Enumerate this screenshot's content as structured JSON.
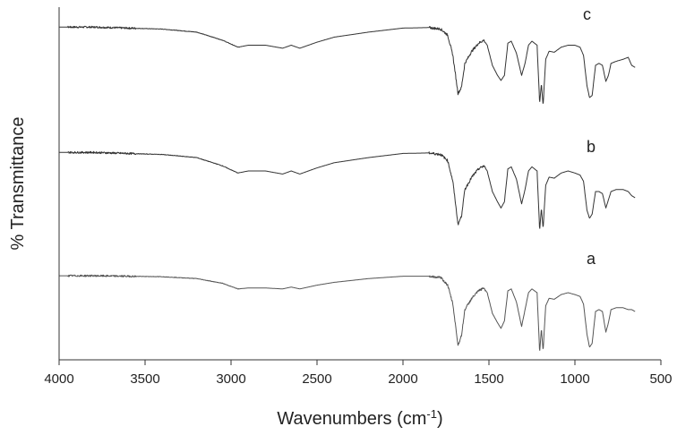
{
  "chart_data": {
    "type": "line",
    "title": "",
    "xlabel": "Wavenumbers (cm",
    "xlabel_sup": "-1",
    "xlabel_close": ")",
    "ylabel": "% Transmittance",
    "xlim": [
      4000,
      500
    ],
    "x_reversed": true,
    "x_ticks": [
      "4000",
      "3500",
      "3000",
      "2500",
      "2000",
      "1500",
      "1000",
      "500"
    ],
    "grid": false,
    "legend": "none",
    "y_axis_values_hidden": true,
    "series": [
      {
        "name": "c",
        "color": "#333333",
        "points": [
          [
            4000,
            98
          ],
          [
            3800,
            98
          ],
          [
            3600,
            97
          ],
          [
            3400,
            96
          ],
          [
            3200,
            93
          ],
          [
            3050,
            85
          ],
          [
            2960,
            78
          ],
          [
            2900,
            80
          ],
          [
            2800,
            80
          ],
          [
            2700,
            77
          ],
          [
            2650,
            80
          ],
          [
            2600,
            77
          ],
          [
            2550,
            80
          ],
          [
            2500,
            83
          ],
          [
            2400,
            88
          ],
          [
            2200,
            93
          ],
          [
            2000,
            97
          ],
          [
            1850,
            97.5
          ],
          [
            1780,
            96
          ],
          [
            1740,
            90
          ],
          [
            1710,
            70
          ],
          [
            1680,
            32
          ],
          [
            1660,
            38
          ],
          [
            1640,
            62
          ],
          [
            1600,
            74
          ],
          [
            1560,
            82
          ],
          [
            1530,
            85
          ],
          [
            1510,
            80
          ],
          [
            1480,
            60
          ],
          [
            1450,
            50
          ],
          [
            1430,
            45
          ],
          [
            1410,
            50
          ],
          [
            1390,
            82
          ],
          [
            1370,
            84
          ],
          [
            1340,
            72
          ],
          [
            1310,
            50
          ],
          [
            1290,
            62
          ],
          [
            1270,
            80
          ],
          [
            1250,
            84
          ],
          [
            1220,
            80
          ],
          [
            1205,
            22
          ],
          [
            1195,
            42
          ],
          [
            1185,
            20
          ],
          [
            1170,
            66
          ],
          [
            1150,
            74
          ],
          [
            1120,
            73
          ],
          [
            1080,
            78
          ],
          [
            1040,
            80
          ],
          [
            1000,
            80
          ],
          [
            970,
            78
          ],
          [
            950,
            70
          ],
          [
            930,
            40
          ],
          [
            915,
            28
          ],
          [
            900,
            30
          ],
          [
            880,
            60
          ],
          [
            860,
            62
          ],
          [
            840,
            60
          ],
          [
            820,
            44
          ],
          [
            805,
            50
          ],
          [
            790,
            62
          ],
          [
            760,
            64
          ],
          [
            720,
            66
          ],
          [
            690,
            68
          ],
          [
            670,
            60
          ],
          [
            650,
            58
          ]
        ]
      },
      {
        "name": "b",
        "color": "#333333",
        "points": [
          [
            4000,
            98
          ],
          [
            3800,
            98
          ],
          [
            3600,
            97
          ],
          [
            3400,
            96
          ],
          [
            3200,
            93
          ],
          [
            3050,
            85
          ],
          [
            2960,
            78
          ],
          [
            2900,
            80
          ],
          [
            2800,
            80
          ],
          [
            2700,
            77
          ],
          [
            2650,
            80
          ],
          [
            2600,
            77
          ],
          [
            2550,
            80
          ],
          [
            2500,
            83
          ],
          [
            2400,
            88
          ],
          [
            2200,
            93
          ],
          [
            2000,
            97
          ],
          [
            1850,
            97.5
          ],
          [
            1780,
            96
          ],
          [
            1740,
            90
          ],
          [
            1710,
            70
          ],
          [
            1680,
            28
          ],
          [
            1660,
            36
          ],
          [
            1640,
            62
          ],
          [
            1600,
            74
          ],
          [
            1560,
            82
          ],
          [
            1530,
            85
          ],
          [
            1510,
            80
          ],
          [
            1480,
            60
          ],
          [
            1450,
            50
          ],
          [
            1430,
            44
          ],
          [
            1410,
            50
          ],
          [
            1390,
            82
          ],
          [
            1370,
            84
          ],
          [
            1340,
            72
          ],
          [
            1310,
            48
          ],
          [
            1290,
            62
          ],
          [
            1270,
            80
          ],
          [
            1250,
            84
          ],
          [
            1220,
            80
          ],
          [
            1205,
            22
          ],
          [
            1195,
            44
          ],
          [
            1185,
            24
          ],
          [
            1170,
            66
          ],
          [
            1150,
            74
          ],
          [
            1120,
            73
          ],
          [
            1080,
            78
          ],
          [
            1040,
            80
          ],
          [
            1000,
            78
          ],
          [
            970,
            76
          ],
          [
            950,
            70
          ],
          [
            930,
            42
          ],
          [
            915,
            34
          ],
          [
            900,
            38
          ],
          [
            880,
            60
          ],
          [
            860,
            60
          ],
          [
            840,
            58
          ],
          [
            820,
            44
          ],
          [
            805,
            52
          ],
          [
            790,
            60
          ],
          [
            760,
            62
          ],
          [
            720,
            62
          ],
          [
            690,
            60
          ],
          [
            670,
            56
          ],
          [
            650,
            54
          ]
        ]
      },
      {
        "name": "a",
        "color": "#555555",
        "points": [
          [
            4000,
            98
          ],
          [
            3800,
            98
          ],
          [
            3600,
            97.5
          ],
          [
            3400,
            97
          ],
          [
            3200,
            95
          ],
          [
            3050,
            90
          ],
          [
            2960,
            84
          ],
          [
            2900,
            85
          ],
          [
            2800,
            85
          ],
          [
            2700,
            84
          ],
          [
            2650,
            86
          ],
          [
            2600,
            84
          ],
          [
            2550,
            86
          ],
          [
            2500,
            88
          ],
          [
            2400,
            91
          ],
          [
            2200,
            95
          ],
          [
            2000,
            97.5
          ],
          [
            1850,
            97.5
          ],
          [
            1780,
            96
          ],
          [
            1740,
            88
          ],
          [
            1710,
            68
          ],
          [
            1680,
            24
          ],
          [
            1660,
            34
          ],
          [
            1640,
            62
          ],
          [
            1600,
            74
          ],
          [
            1560,
            82
          ],
          [
            1530,
            85
          ],
          [
            1510,
            80
          ],
          [
            1480,
            58
          ],
          [
            1450,
            48
          ],
          [
            1430,
            42
          ],
          [
            1410,
            50
          ],
          [
            1390,
            82
          ],
          [
            1370,
            84
          ],
          [
            1340,
            70
          ],
          [
            1310,
            44
          ],
          [
            1290,
            62
          ],
          [
            1270,
            80
          ],
          [
            1250,
            84
          ],
          [
            1220,
            80
          ],
          [
            1205,
            16
          ],
          [
            1195,
            42
          ],
          [
            1185,
            18
          ],
          [
            1170,
            66
          ],
          [
            1150,
            74
          ],
          [
            1120,
            73
          ],
          [
            1080,
            78
          ],
          [
            1040,
            80
          ],
          [
            1000,
            78
          ],
          [
            970,
            76
          ],
          [
            950,
            68
          ],
          [
            930,
            36
          ],
          [
            915,
            22
          ],
          [
            900,
            26
          ],
          [
            880,
            60
          ],
          [
            860,
            62
          ],
          [
            840,
            60
          ],
          [
            820,
            38
          ],
          [
            805,
            48
          ],
          [
            790,
            62
          ],
          [
            760,
            64
          ],
          [
            720,
            64
          ],
          [
            690,
            62
          ],
          [
            670,
            62
          ],
          [
            650,
            60
          ]
        ]
      }
    ]
  }
}
